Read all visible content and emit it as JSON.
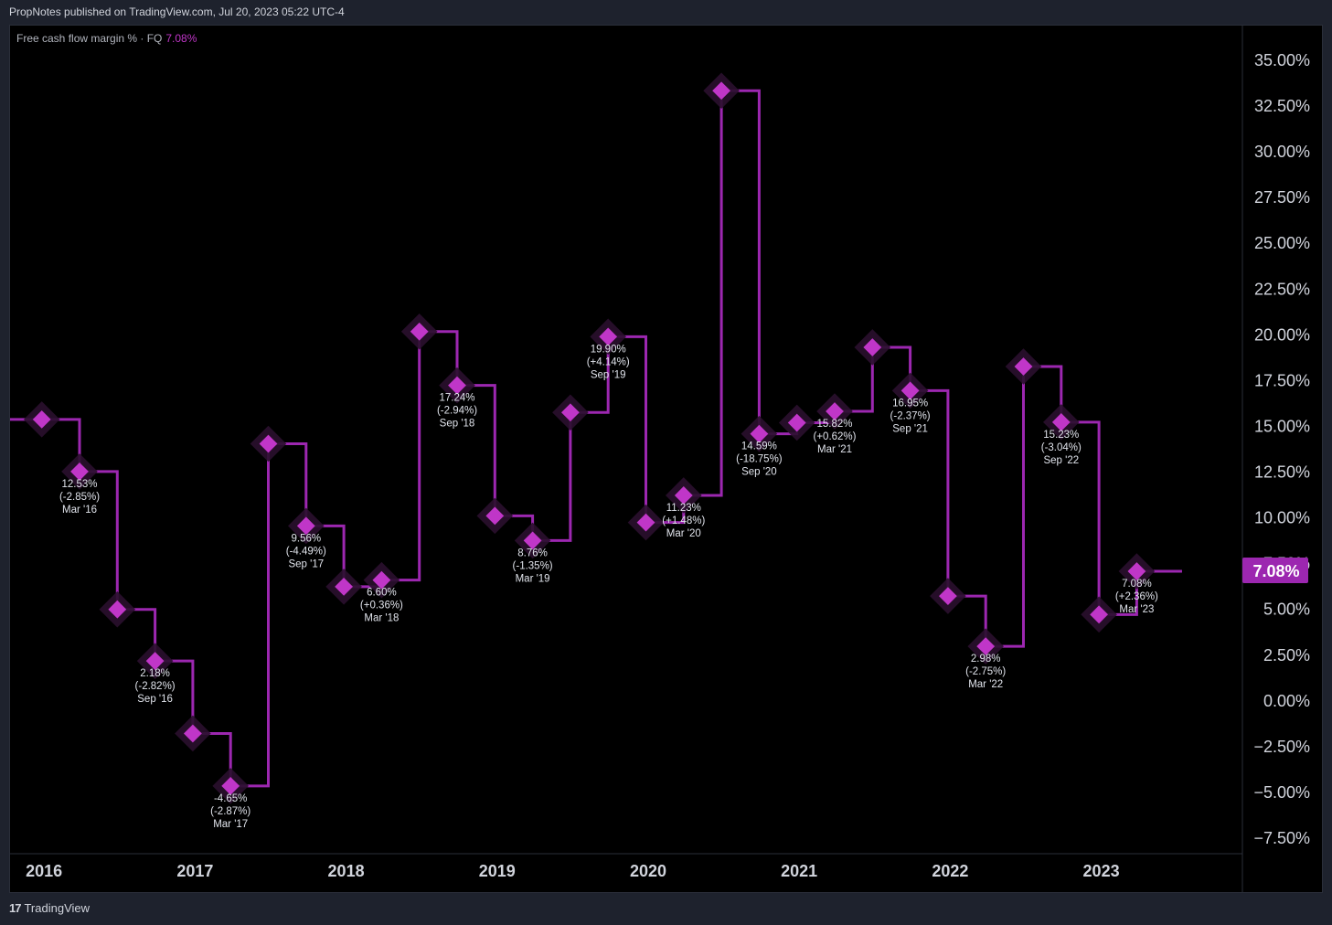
{
  "header": {
    "published_text": "PropNotes published on TradingView.com, Jul 20, 2023 05:22 UTC-4"
  },
  "legend": {
    "series_label": "Free cash flow margin % · FQ",
    "current_value": "7.08%"
  },
  "footer": {
    "brand": "TradingView",
    "logo_icon": "tradingview-logo-icon"
  },
  "colors": {
    "series": "#9c27b0",
    "series_bright": "#c036c8",
    "background": "#000000",
    "axis_text": "#d1d4dc",
    "price_tag_bg": "#9c27b0"
  },
  "chart_data": {
    "type": "line",
    "step": true,
    "title": "Free cash flow margin % · FQ",
    "x_axis_labels": [
      "2016",
      "2017",
      "2018",
      "2019",
      "2020",
      "2021",
      "2022",
      "2023"
    ],
    "y_axis_labels": [
      "35.00%",
      "32.50%",
      "30.00%",
      "27.50%",
      "25.00%",
      "22.50%",
      "20.00%",
      "17.50%",
      "15.00%",
      "12.50%",
      "10.00%",
      "7.50%",
      "5.00%",
      "2.50%",
      "0.00%",
      "−2.50%",
      "−5.00%",
      "−7.50%"
    ],
    "ylim": [
      -8.5,
      36.5
    ],
    "y_unit": "%",
    "last_value_tag": "7.08%",
    "grid": false,
    "points": [
      {
        "t": 2015.75,
        "value": 15.38,
        "label": null
      },
      {
        "t": 2016.0,
        "value": 12.53,
        "label": [
          "12.53%",
          "(-2.85%)",
          "Mar '16"
        ]
      },
      {
        "t": 2016.25,
        "value": 5.0,
        "label": null
      },
      {
        "t": 2016.5,
        "value": 2.18,
        "label": [
          "2.18%",
          "(-2.82%)",
          "Sep '16"
        ]
      },
      {
        "t": 2016.75,
        "value": -1.78,
        "label": null
      },
      {
        "t": 2017.0,
        "value": -4.65,
        "label": [
          "-4.65%",
          "(-2.87%)",
          "Mar '17"
        ]
      },
      {
        "t": 2017.25,
        "value": 14.05,
        "label": null
      },
      {
        "t": 2017.5,
        "value": 9.56,
        "label": [
          "9.56%",
          "(-4.49%)",
          "Sep '17"
        ]
      },
      {
        "t": 2017.75,
        "value": 6.24,
        "label": null
      },
      {
        "t": 2018.0,
        "value": 6.6,
        "label": [
          "6.60%",
          "(+0.36%)",
          "Mar '18"
        ]
      },
      {
        "t": 2018.25,
        "value": 20.18,
        "label": null
      },
      {
        "t": 2018.5,
        "value": 17.24,
        "label": [
          "17.24%",
          "(-2.94%)",
          "Sep '18"
        ]
      },
      {
        "t": 2018.75,
        "value": 10.11,
        "label": null
      },
      {
        "t": 2019.0,
        "value": 8.76,
        "label": [
          "8.76%",
          "(-1.35%)",
          "Mar '19"
        ]
      },
      {
        "t": 2019.25,
        "value": 15.76,
        "label": null
      },
      {
        "t": 2019.5,
        "value": 19.9,
        "label": [
          "19.90%",
          "(+4.14%)",
          "Sep '19"
        ]
      },
      {
        "t": 2019.75,
        "value": 9.75,
        "label": null
      },
      {
        "t": 2020.0,
        "value": 11.23,
        "label": [
          "11.23%",
          "(+1.48%)",
          "Mar '20"
        ]
      },
      {
        "t": 2020.25,
        "value": 33.34,
        "label": null
      },
      {
        "t": 2020.5,
        "value": 14.59,
        "label": [
          "14.59%",
          "(-18.75%)",
          "Sep '20"
        ]
      },
      {
        "t": 2020.75,
        "value": 15.2,
        "label": null
      },
      {
        "t": 2021.0,
        "value": 15.82,
        "label": [
          "15.82%",
          "(+0.62%)",
          "Mar '21"
        ]
      },
      {
        "t": 2021.25,
        "value": 19.32,
        "label": null
      },
      {
        "t": 2021.5,
        "value": 16.95,
        "label": [
          "16.95%",
          "(-2.37%)",
          "Sep '21"
        ]
      },
      {
        "t": 2021.75,
        "value": 5.73,
        "label": null
      },
      {
        "t": 2022.0,
        "value": 2.98,
        "label": [
          "2.98%",
          "(-2.75%)",
          "Mar '22"
        ]
      },
      {
        "t": 2022.25,
        "value": 18.27,
        "label": null
      },
      {
        "t": 2022.5,
        "value": 15.23,
        "label": [
          "15.23%",
          "(-3.04%)",
          "Sep '22"
        ]
      },
      {
        "t": 2022.75,
        "value": 4.72,
        "label": null
      },
      {
        "t": 2023.0,
        "value": 7.08,
        "label": [
          "7.08%",
          "(+2.36%)",
          "Mar '23"
        ]
      }
    ],
    "extend_to": 2023.3
  }
}
